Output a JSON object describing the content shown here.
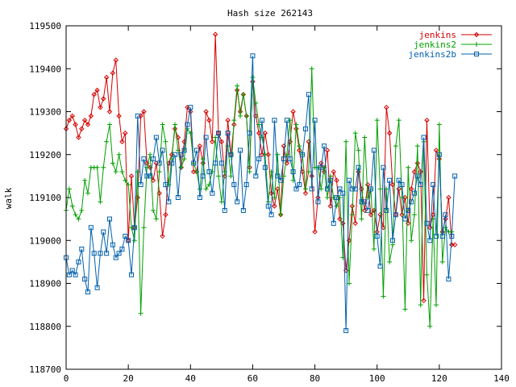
{
  "chart_data": {
    "type": "line",
    "title": "Hash size 262143",
    "xlabel": "",
    "ylabel": "walk",
    "xlim": [
      0,
      140
    ],
    "ylim": [
      118700,
      119500
    ],
    "xticks": [
      0,
      20,
      40,
      60,
      80,
      100,
      120,
      140
    ],
    "yticks": [
      118700,
      118800,
      118900,
      119000,
      119100,
      119200,
      119300,
      119400,
      119500
    ],
    "legend_position": "top-right",
    "grid": false,
    "series": [
      {
        "name": "jenkins",
        "color": "#d40000",
        "marker": "diamond",
        "values": [
          119260,
          119280,
          119290,
          119270,
          119240,
          119260,
          119280,
          119270,
          119290,
          119340,
          119350,
          119310,
          119330,
          119380,
          119300,
          119390,
          119420,
          119290,
          119230,
          119250,
          119000,
          119150,
          119030,
          119100,
          119290,
          119300,
          119180,
          119170,
          119140,
          119180,
          119110,
          119010,
          119060,
          119180,
          119200,
          119260,
          119240,
          119170,
          119230,
          119310,
          119300,
          119160,
          119160,
          119220,
          119180,
          119300,
          119280,
          119230,
          119480,
          119250,
          119230,
          119150,
          119280,
          119200,
          119270,
          119350,
          119300,
          119340,
          119290,
          119170,
          119370,
          119290,
          119250,
          119200,
          119250,
          119200,
          119110,
          119080,
          119120,
          119060,
          119220,
          119180,
          119230,
          119300,
          119260,
          119210,
          119160,
          119110,
          119230,
          119150,
          119020,
          119100,
          119180,
          119160,
          119210,
          119080,
          119160,
          119140,
          119050,
          119040,
          118930,
          119000,
          119080,
          119040,
          119160,
          119120,
          119070,
          119130,
          119060,
          119070,
          119020,
          119060,
          119030,
          119310,
          119250,
          119130,
          119060,
          119120,
          119060,
          119100,
          119040,
          119120,
          119160,
          119180,
          119160,
          118860,
          119280,
          119030,
          119060,
          119210,
          119190,
          119020,
          119050,
          119100,
          118990,
          118990
        ]
      },
      {
        "name": "jenkins2",
        "color": "#00a000",
        "marker": "plus",
        "values": [
          119070,
          119120,
          119080,
          119060,
          119050,
          119070,
          119140,
          119110,
          119170,
          119170,
          119170,
          119090,
          119170,
          119230,
          119270,
          119180,
          119160,
          119200,
          119160,
          119140,
          119130,
          119030,
          119000,
          119160,
          118830,
          119030,
          119170,
          119200,
          119070,
          119050,
          119160,
          119270,
          119230,
          119130,
          119190,
          119270,
          119210,
          119170,
          119190,
          119260,
          119250,
          119180,
          119160,
          119120,
          119190,
          119120,
          119130,
          119160,
          119240,
          119150,
          119090,
          119160,
          119220,
          119150,
          119280,
          119360,
          119290,
          119340,
          119290,
          119160,
          119380,
          119320,
          119270,
          119240,
          119200,
          119090,
          119160,
          119100,
          119200,
          119060,
          119150,
          119200,
          119280,
          119140,
          119270,
          119220,
          119200,
          119120,
          119160,
          119400,
          119170,
          119170,
          119120,
          119170,
          119100,
          119150,
          119100,
          119080,
          119100,
          118960,
          119230,
          118900,
          119060,
          119250,
          119210,
          119050,
          119240,
          119100,
          119120,
          118980,
          119280,
          119120,
          118870,
          119120,
          118950,
          118990,
          119220,
          119280,
          119100,
          118840,
          119170,
          119000,
          119060,
          119220,
          118850,
          119230,
          118920,
          118800,
          119050,
          118850,
          119270,
          118950,
          119030,
          119020,
          119020
        ]
      },
      {
        "name": "jenkins2b",
        "color": "#0060ad",
        "marker": "square",
        "values": [
          118960,
          118920,
          118930,
          118920,
          118950,
          118980,
          118910,
          118880,
          119030,
          118970,
          118890,
          118970,
          119020,
          118970,
          119050,
          118990,
          118960,
          118970,
          118980,
          119010,
          119000,
          118920,
          119030,
          119290,
          119130,
          119190,
          119150,
          119150,
          119190,
          119240,
          119180,
          119210,
          119130,
          119090,
          119180,
          119200,
          119100,
          119200,
          119210,
          119270,
          119310,
          119180,
          119210,
          119100,
          119150,
          119240,
          119160,
          119110,
          119180,
          119250,
          119180,
          119070,
          119250,
          119200,
          119130,
          119090,
          119210,
          119070,
          119130,
          119250,
          119430,
          119150,
          119190,
          119280,
          119170,
          119080,
          119060,
          119280,
          119150,
          119140,
          119190,
          119280,
          119190,
          119160,
          119120,
          119130,
          119200,
          119260,
          119340,
          119120,
          119280,
          119090,
          119170,
          119220,
          119120,
          119140,
          119040,
          119100,
          119120,
          119110,
          118790,
          119140,
          119120,
          119120,
          119170,
          119090,
          119090,
          119070,
          119120,
          119210,
          119010,
          118940,
          119170,
          119070,
          119140,
          119000,
          119060,
          119140,
          119130,
          119050,
          119070,
          119090,
          119110,
          119150,
          119130,
          119240,
          119040,
          119000,
          119130,
          119010,
          119200,
          119010,
          119060,
          118910,
          119010,
          119150
        ]
      }
    ]
  }
}
